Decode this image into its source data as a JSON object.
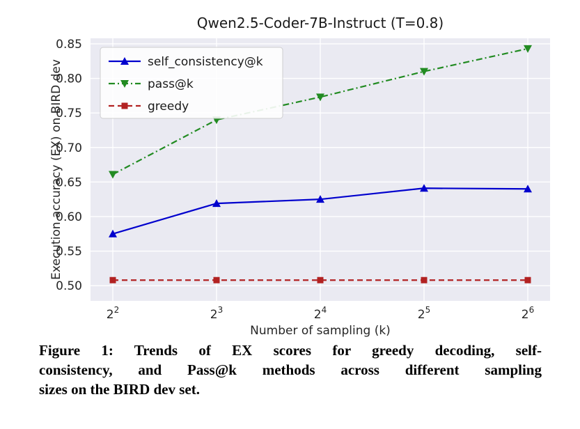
{
  "page": {
    "background": "#ffffff"
  },
  "chart_data": {
    "type": "line",
    "title": "Qwen2.5-Coder-7B-Instruct (T=0.8)",
    "xlabel": "Number of sampling (k)",
    "ylabel": "Execution accuracy (EX) on BIRD dev",
    "x_exponents": [
      2,
      3,
      4,
      5,
      6
    ],
    "xtick_labels": [
      {
        "base": "2",
        "exp": "2"
      },
      {
        "base": "2",
        "exp": "3"
      },
      {
        "base": "2",
        "exp": "4"
      },
      {
        "base": "2",
        "exp": "5"
      },
      {
        "base": "2",
        "exp": "6"
      }
    ],
    "yticks": [
      0.5,
      0.55,
      0.6,
      0.65,
      0.7,
      0.75,
      0.8,
      0.85
    ],
    "ylim_draw": [
      0.478,
      0.858
    ],
    "plot_bg": "#eaeaf2",
    "grid_color": "#ffffff",
    "legend_position": "upper left",
    "series": [
      {
        "name": "self_consistency@k",
        "color": "#0000cd",
        "marker": "triangle-up",
        "line": "solid",
        "values": [
          0.575,
          0.619,
          0.625,
          0.641,
          0.64
        ]
      },
      {
        "name": "pass@k",
        "color": "#228b22",
        "marker": "triangle-down",
        "line": "dashdot",
        "values": [
          0.661,
          0.74,
          0.773,
          0.81,
          0.843
        ]
      },
      {
        "name": "greedy",
        "color": "#b22222",
        "marker": "square",
        "line": "dashed",
        "values": [
          0.508,
          0.508,
          0.508,
          0.508,
          0.508
        ]
      }
    ]
  },
  "caption": {
    "lines": [
      "Figure 1: Trends of EX scores for greedy decoding, self-",
      "consistency, and Pass@k methods across different sampling",
      "sizes on the BIRD dev set."
    ]
  }
}
